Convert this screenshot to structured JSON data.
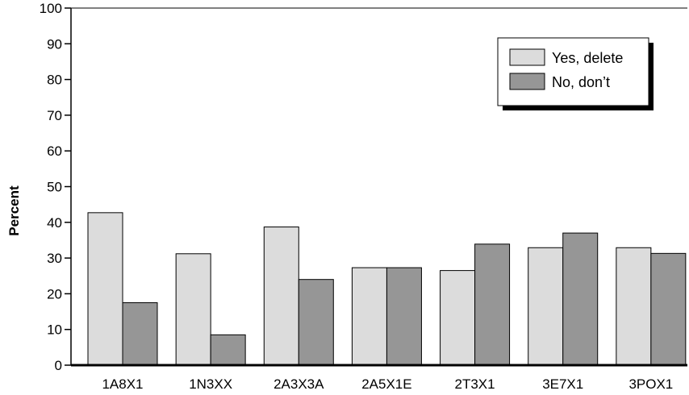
{
  "chart_data": {
    "type": "bar",
    "title": "",
    "xlabel": "",
    "ylabel": "Percent",
    "ylim": [
      0,
      100
    ],
    "yticks": [
      0,
      10,
      20,
      30,
      40,
      50,
      60,
      70,
      80,
      90,
      100
    ],
    "grid": false,
    "legend_position": "top-right",
    "categories": [
      "1A8X1",
      "1N3XX",
      "2A3X3A",
      "2A5X1E",
      "2T3X1",
      "3E7X1",
      "3POX1"
    ],
    "series": [
      {
        "name": "Yes, delete",
        "color": "#dcdcdc",
        "values": [
          42.7,
          31.2,
          38.7,
          27.3,
          26.5,
          32.9,
          32.9
        ]
      },
      {
        "name": "No, don’t",
        "color": "#969696",
        "values": [
          17.5,
          8.5,
          24.0,
          27.3,
          33.9,
          37.0,
          31.3
        ]
      }
    ]
  }
}
